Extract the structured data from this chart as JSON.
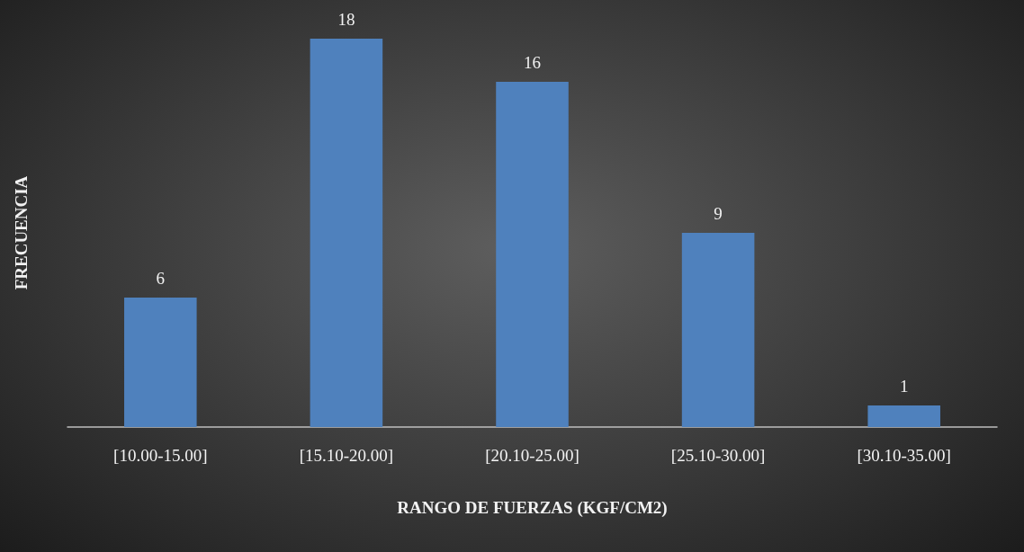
{
  "chart_data": {
    "type": "bar",
    "xlabel": "RANGO DE FUERZAS (KGF/CM2)",
    "ylabel": "FRECUENCIA",
    "categories": [
      "[10.00-15.00]",
      "[15.10-20.00]",
      "[20.10-25.00]",
      "[25.10-30.00]",
      "[30.10-35.00]"
    ],
    "values": [
      6,
      18,
      16,
      9,
      1
    ],
    "color": "#4f81bd",
    "data_labels": true,
    "tick_labels": "x"
  }
}
